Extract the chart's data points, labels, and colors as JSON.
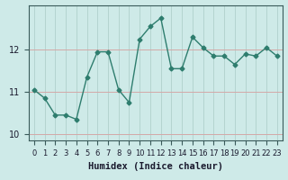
{
  "x": [
    0,
    1,
    2,
    3,
    4,
    5,
    6,
    7,
    8,
    9,
    10,
    11,
    12,
    13,
    14,
    15,
    16,
    17,
    18,
    19,
    20,
    21,
    22,
    23
  ],
  "y": [
    11.05,
    10.85,
    10.45,
    10.45,
    10.35,
    11.35,
    11.95,
    11.95,
    11.05,
    10.75,
    12.25,
    12.55,
    12.75,
    11.55,
    11.55,
    12.3,
    12.05,
    11.85,
    11.85,
    11.65,
    11.9,
    11.85,
    12.05,
    11.85
  ],
  "line_color": "#2e7d6e",
  "marker": "D",
  "marker_size": 2.5,
  "bg_color": "#ceeae8",
  "grid_color": "#b0d0cc",
  "xlabel": "Humidex (Indice chaleur)",
  "ylabel": "",
  "ylim": [
    9.85,
    13.05
  ],
  "yticks": [
    10,
    11,
    12
  ],
  "xlim": [
    -0.5,
    23.5
  ],
  "title": "",
  "line_width": 1.0,
  "xlabel_fontsize": 7.5,
  "tick_fontsize": 7,
  "xlabel_color": "#1a1a2e",
  "tick_color": "#1a1a2e",
  "spine_color": "#3a5a5a"
}
